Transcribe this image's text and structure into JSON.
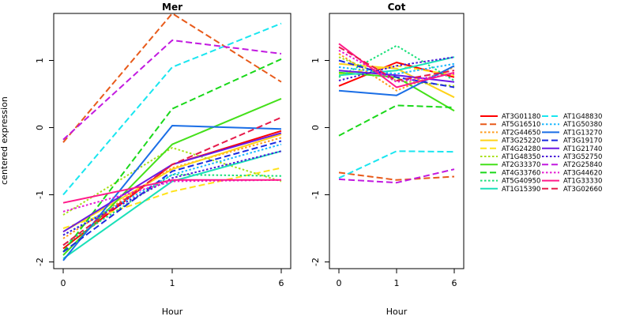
{
  "figure": {
    "ylabel": "centered expression",
    "xlabel": "Hour"
  },
  "chart_data": [
    {
      "type": "line",
      "title": "Mer",
      "xlabel": "Hour",
      "ylabel": "centered expression",
      "x": [
        0,
        1,
        6
      ],
      "x_ticks": [
        "0",
        "1",
        "6"
      ],
      "y_ticks": [
        "-2",
        "-1",
        "0",
        "1"
      ],
      "ylim": [
        -2.1,
        1.7
      ],
      "grid": false,
      "series": [
        {
          "name": "AT3G01180",
          "values": [
            -1.8,
            -0.55,
            -0.05
          ]
        },
        {
          "name": "AT5G16510",
          "values": [
            -0.22,
            1.7,
            0.68
          ]
        },
        {
          "name": "AT2G44650",
          "values": [
            -1.65,
            -0.6,
            -0.15
          ]
        },
        {
          "name": "AT3G25220",
          "values": [
            -1.55,
            -0.62,
            -0.1
          ]
        },
        {
          "name": "AT4G24280",
          "values": [
            -1.5,
            -0.95,
            -0.6
          ]
        },
        {
          "name": "AT1G48350",
          "values": [
            -1.3,
            -0.3,
            -0.8
          ]
        },
        {
          "name": "AT2G33370",
          "values": [
            -1.9,
            -0.25,
            0.43
          ]
        },
        {
          "name": "AT4G33760",
          "values": [
            -1.85,
            0.28,
            1.02
          ]
        },
        {
          "name": "AT5G40950",
          "values": [
            -1.75,
            -0.7,
            -0.72
          ]
        },
        {
          "name": "AT1G15390",
          "values": [
            -1.95,
            -0.8,
            -0.35
          ]
        },
        {
          "name": "AT1G48830",
          "values": [
            -1.0,
            0.9,
            1.55
          ]
        },
        {
          "name": "AT1G50380",
          "values": [
            -1.6,
            -0.7,
            -0.25
          ]
        },
        {
          "name": "AT1G13270",
          "values": [
            -1.98,
            0.03,
            -0.02
          ]
        },
        {
          "name": "AT3G19170",
          "values": [
            -1.85,
            -0.65,
            -0.2
          ]
        },
        {
          "name": "AT1G21740",
          "values": [
            -1.55,
            -0.55,
            -0.08
          ]
        },
        {
          "name": "AT3G52750",
          "values": [
            -1.6,
            -0.75,
            -0.35
          ]
        },
        {
          "name": "AT2G25840",
          "values": [
            -0.18,
            1.3,
            1.1
          ]
        },
        {
          "name": "AT3G44620",
          "values": [
            -1.25,
            -0.8,
            -0.78
          ]
        },
        {
          "name": "AT1G33330",
          "values": [
            -1.12,
            -0.78,
            -0.78
          ]
        },
        {
          "name": "AT3G02660",
          "values": [
            -1.75,
            -0.55,
            0.15
          ]
        }
      ]
    },
    {
      "type": "line",
      "title": "Cot",
      "xlabel": "Hour",
      "ylabel": "",
      "x": [
        0,
        1,
        6
      ],
      "x_ticks": [
        "0",
        "1",
        "6"
      ],
      "y_ticks": [
        "-2",
        "-1",
        "0",
        "1"
      ],
      "ylim": [
        -2.1,
        1.7
      ],
      "grid": false,
      "series": [
        {
          "name": "AT3G01180",
          "values": [
            0.62,
            0.97,
            0.75
          ]
        },
        {
          "name": "AT5G16510",
          "values": [
            -0.67,
            -0.78,
            -0.73
          ]
        },
        {
          "name": "AT2G44650",
          "values": [
            1.1,
            0.55,
            0.9
          ]
        },
        {
          "name": "AT3G25220",
          "values": [
            0.95,
            0.88,
            0.45
          ]
        },
        {
          "name": "AT4G24280",
          "values": [
            0.8,
            0.92,
            0.78
          ]
        },
        {
          "name": "AT1G48350",
          "values": [
            1.05,
            0.7,
            0.62
          ]
        },
        {
          "name": "AT2G33370",
          "values": [
            0.82,
            0.75,
            0.25
          ]
        },
        {
          "name": "AT4G33760",
          "values": [
            -0.12,
            0.33,
            0.3
          ]
        },
        {
          "name": "AT5G40950",
          "values": [
            0.75,
            1.22,
            0.7
          ]
        },
        {
          "name": "AT1G15390",
          "values": [
            0.78,
            0.85,
            1.05
          ]
        },
        {
          "name": "AT1G48830",
          "values": [
            -0.75,
            -0.35,
            -0.36
          ]
        },
        {
          "name": "AT1G50380",
          "values": [
            0.9,
            0.8,
            0.95
          ]
        },
        {
          "name": "AT1G13270",
          "values": [
            0.55,
            0.48,
            0.92
          ]
        },
        {
          "name": "AT3G19170",
          "values": [
            1.0,
            0.75,
            0.6
          ]
        },
        {
          "name": "AT1G21740",
          "values": [
            0.85,
            0.78,
            0.68
          ]
        },
        {
          "name": "AT3G52750",
          "values": [
            0.7,
            0.92,
            1.05
          ]
        },
        {
          "name": "AT2G25840",
          "values": [
            -0.77,
            -0.82,
            -0.62
          ]
        },
        {
          "name": "AT3G44620",
          "values": [
            1.15,
            0.68,
            0.8
          ]
        },
        {
          "name": "AT1G33330",
          "values": [
            1.25,
            0.6,
            0.82
          ]
        },
        {
          "name": "AT3G02660",
          "values": [
            1.2,
            0.7,
            0.85
          ]
        }
      ]
    }
  ],
  "legend": {
    "placement": "right",
    "entries": [
      {
        "name": "AT3G01180",
        "color": "#ff0000",
        "dash": "solid"
      },
      {
        "name": "AT5G16510",
        "color": "#e85a1a",
        "dash": "long"
      },
      {
        "name": "AT2G44650",
        "color": "#ff9a1a",
        "dash": "dot"
      },
      {
        "name": "AT3G25220",
        "color": "#ffd21a",
        "dash": "solid"
      },
      {
        "name": "AT4G24280",
        "color": "#ffe21a",
        "dash": "long"
      },
      {
        "name": "AT1G48350",
        "color": "#a8e01a",
        "dash": "dot"
      },
      {
        "name": "AT2G33370",
        "color": "#44e01a",
        "dash": "solid"
      },
      {
        "name": "AT4G33760",
        "color": "#1ad81a",
        "dash": "long"
      },
      {
        "name": "AT5G40950",
        "color": "#1ae07a",
        "dash": "dot"
      },
      {
        "name": "AT1G15390",
        "color": "#1ae0b8",
        "dash": "solid"
      },
      {
        "name": "AT1G48830",
        "color": "#1ae6f0",
        "dash": "long"
      },
      {
        "name": "AT1G50380",
        "color": "#1ab8ff",
        "dash": "dot"
      },
      {
        "name": "AT1G13270",
        "color": "#1a6ee6",
        "dash": "solid"
      },
      {
        "name": "AT3G19170",
        "color": "#1a2ae0",
        "dash": "long"
      },
      {
        "name": "AT1G21740",
        "color": "#6a1ae6",
        "dash": "solid"
      },
      {
        "name": "AT3G52750",
        "color": "#4a1ad8",
        "dash": "dot"
      },
      {
        "name": "AT2G25840",
        "color": "#c21ae0",
        "dash": "long"
      },
      {
        "name": "AT3G44620",
        "color": "#e61ad2",
        "dash": "dot"
      },
      {
        "name": "AT1G33330",
        "color": "#ff1a8a",
        "dash": "solid"
      },
      {
        "name": "AT3G02660",
        "color": "#e61a4a",
        "dash": "long"
      }
    ]
  }
}
